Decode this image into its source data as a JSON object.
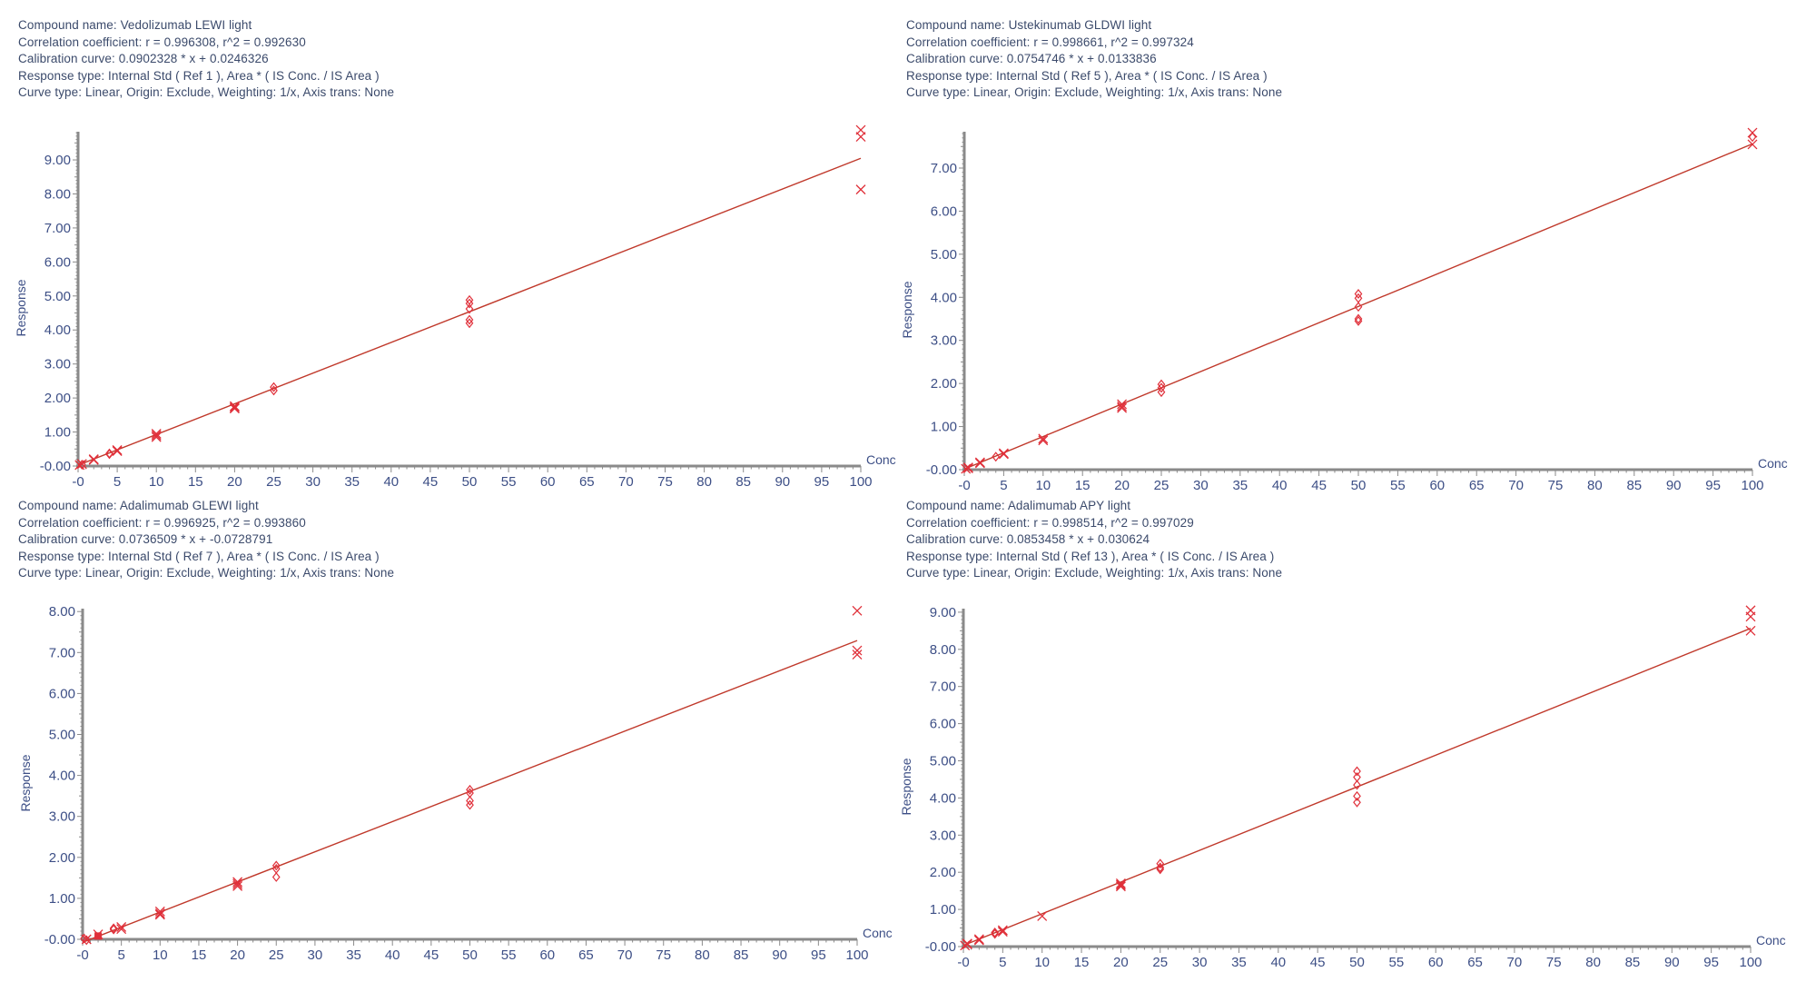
{
  "colors": {
    "header_text": "#3b4a6b",
    "axis": "#8a8a8a",
    "tick_label": "#3d4f86",
    "fit_line": "#c0392b",
    "marker": "#e0303a"
  },
  "panels": [
    {
      "header": {
        "compound": "Compound name: Vedolizumab LEWI light",
        "correlation": "Correlation coefficient: r = 0.996308, r^2 = 0.992630",
        "calibration": "Calibration curve: 0.0902328 * x + 0.0246326",
        "response_type": "Response type: Internal Std ( Ref 1 ), Area * ( IS Conc. / IS Area )",
        "curve_type": "Curve type: Linear, Origin: Exclude, Weighting: 1/x, Axis trans: None"
      },
      "ylabel": "Response",
      "xlabel": "Conc"
    },
    {
      "header": {
        "compound": "Compound name: Ustekinumab GLDWI light",
        "correlation": "Correlation coefficient: r = 0.998661, r^2 = 0.997324",
        "calibration": "Calibration curve: 0.0754746 * x + 0.0133836",
        "response_type": "Response type: Internal Std ( Ref 5 ), Area * ( IS Conc. / IS Area )",
        "curve_type": "Curve type: Linear, Origin: Exclude, Weighting: 1/x, Axis trans: None"
      },
      "ylabel": "Response",
      "xlabel": "Conc"
    },
    {
      "header": {
        "compound": "Compound name: Adalimumab GLEWI light",
        "correlation": "Correlation coefficient: r = 0.996925, r^2 = 0.993860",
        "calibration": "Calibration curve: 0.0736509 * x + -0.0728791",
        "response_type": "Response type: Internal Std ( Ref 7 ), Area * ( IS Conc. / IS Area )",
        "curve_type": "Curve type: Linear, Origin: Exclude, Weighting: 1/x, Axis trans: None"
      },
      "ylabel": "Response",
      "xlabel": "Conc"
    },
    {
      "header": {
        "compound": "Compound name: Adalimumab APY light",
        "correlation": "Correlation coefficient: r = 0.998514, r^2 = 0.997029",
        "calibration": "Calibration curve: 0.0853458 * x + 0.030624",
        "response_type": "Response type: Internal Std ( Ref 13 ), Area * ( IS Conc. / IS Area )",
        "curve_type": "Curve type: Linear, Origin: Exclude, Weighting: 1/x, Axis trans: None"
      },
      "ylabel": "Response",
      "xlabel": "Conc"
    }
  ],
  "chart_data": [
    {
      "type": "scatter",
      "title": "Vedolizumab LEWI light",
      "xlabel": "Conc",
      "ylabel": "Response",
      "xlim": [
        0,
        100
      ],
      "ylim": [
        0,
        9.8
      ],
      "x_ticks": [
        "-0",
        "5",
        "10",
        "15",
        "20",
        "25",
        "30",
        "35",
        "40",
        "45",
        "50",
        "55",
        "60",
        "65",
        "70",
        "75",
        "80",
        "85",
        "90",
        "95",
        "100"
      ],
      "y_ticks": [
        "-0.00",
        "1.00",
        "2.00",
        "3.00",
        "4.00",
        "5.00",
        "6.00",
        "7.00",
        "8.00",
        "9.00"
      ],
      "fit": {
        "slope": 0.0902328,
        "intercept": 0.0246326
      },
      "points": [
        {
          "x": 0.2,
          "y": 0.03,
          "m": "x"
        },
        {
          "x": 0.5,
          "y": 0.06,
          "m": "x"
        },
        {
          "x": 0.5,
          "y": 0.04,
          "m": "d"
        },
        {
          "x": 2,
          "y": 0.2,
          "m": "x"
        },
        {
          "x": 2,
          "y": 0.18,
          "m": "x"
        },
        {
          "x": 4,
          "y": 0.37,
          "m": "d"
        },
        {
          "x": 4,
          "y": 0.35,
          "m": "d"
        },
        {
          "x": 5,
          "y": 0.47,
          "m": "x"
        },
        {
          "x": 5,
          "y": 0.44,
          "m": "x"
        },
        {
          "x": 10,
          "y": 0.95,
          "m": "x"
        },
        {
          "x": 10,
          "y": 0.9,
          "m": "x"
        },
        {
          "x": 10,
          "y": 0.85,
          "m": "x"
        },
        {
          "x": 20,
          "y": 1.76,
          "m": "x"
        },
        {
          "x": 20,
          "y": 1.72,
          "m": "x"
        },
        {
          "x": 20,
          "y": 1.69,
          "m": "x"
        },
        {
          "x": 25,
          "y": 2.32,
          "m": "d"
        },
        {
          "x": 25,
          "y": 2.22,
          "m": "d"
        },
        {
          "x": 50,
          "y": 4.88,
          "m": "d"
        },
        {
          "x": 50,
          "y": 4.78,
          "m": "d"
        },
        {
          "x": 50,
          "y": 4.62,
          "m": "d"
        },
        {
          "x": 50,
          "y": 4.3,
          "m": "d"
        },
        {
          "x": 50,
          "y": 4.2,
          "m": "d"
        },
        {
          "x": 100,
          "y": 9.88,
          "m": "x"
        },
        {
          "x": 100,
          "y": 9.68,
          "m": "x"
        },
        {
          "x": 100,
          "y": 8.13,
          "m": "x"
        }
      ]
    },
    {
      "type": "scatter",
      "title": "Ustekinumab GLDWI light",
      "xlabel": "Conc",
      "ylabel": "Response",
      "xlim": [
        0,
        100
      ],
      "ylim": [
        0,
        7.8
      ],
      "x_ticks": [
        "-0",
        "5",
        "10",
        "15",
        "20",
        "25",
        "30",
        "35",
        "40",
        "45",
        "50",
        "55",
        "60",
        "65",
        "70",
        "75",
        "80",
        "85",
        "90",
        "95",
        "100"
      ],
      "y_ticks": [
        "-0.00",
        "1.00",
        "2.00",
        "3.00",
        "4.00",
        "5.00",
        "6.00",
        "7.00"
      ],
      "fit": {
        "slope": 0.0754746,
        "intercept": 0.0133836
      },
      "points": [
        {
          "x": 0.2,
          "y": 0.02,
          "m": "x"
        },
        {
          "x": 0.5,
          "y": 0.05,
          "m": "x"
        },
        {
          "x": 0.5,
          "y": 0.03,
          "m": "x"
        },
        {
          "x": 2,
          "y": 0.17,
          "m": "x"
        },
        {
          "x": 2,
          "y": 0.15,
          "m": "x"
        },
        {
          "x": 4,
          "y": 0.3,
          "m": "d"
        },
        {
          "x": 5,
          "y": 0.38,
          "m": "x"
        },
        {
          "x": 5,
          "y": 0.36,
          "m": "x"
        },
        {
          "x": 10,
          "y": 0.72,
          "m": "x"
        },
        {
          "x": 10,
          "y": 0.68,
          "m": "x"
        },
        {
          "x": 20,
          "y": 1.52,
          "m": "x"
        },
        {
          "x": 20,
          "y": 1.47,
          "m": "x"
        },
        {
          "x": 20,
          "y": 1.43,
          "m": "x"
        },
        {
          "x": 25,
          "y": 1.98,
          "m": "d"
        },
        {
          "x": 25,
          "y": 1.9,
          "m": "d"
        },
        {
          "x": 25,
          "y": 1.8,
          "m": "d"
        },
        {
          "x": 50,
          "y": 4.08,
          "m": "d"
        },
        {
          "x": 50,
          "y": 3.98,
          "m": "d"
        },
        {
          "x": 50,
          "y": 3.78,
          "m": "d"
        },
        {
          "x": 50,
          "y": 3.5,
          "m": "d"
        },
        {
          "x": 50,
          "y": 3.45,
          "m": "d"
        },
        {
          "x": 100,
          "y": 7.82,
          "m": "x"
        },
        {
          "x": 100,
          "y": 7.72,
          "m": "d"
        },
        {
          "x": 100,
          "y": 7.55,
          "m": "x"
        }
      ]
    },
    {
      "type": "scatter",
      "title": "Adalimumab GLEWI light",
      "xlabel": "Conc",
      "ylabel": "Response",
      "xlim": [
        0,
        100
      ],
      "ylim": [
        0,
        8.0
      ],
      "x_ticks": [
        "-0",
        "5",
        "10",
        "15",
        "20",
        "25",
        "30",
        "35",
        "40",
        "45",
        "50",
        "55",
        "60",
        "65",
        "70",
        "75",
        "80",
        "85",
        "90",
        "95",
        "100"
      ],
      "y_ticks": [
        "-0.00",
        "1.00",
        "2.00",
        "3.00",
        "4.00",
        "5.00",
        "6.00",
        "7.00",
        "8.00"
      ],
      "fit": {
        "slope": 0.0736509,
        "intercept": -0.0728791
      },
      "points": [
        {
          "x": 0.2,
          "y": 0.02,
          "m": "d"
        },
        {
          "x": 0.5,
          "y": -0.02,
          "m": "d"
        },
        {
          "x": 0.5,
          "y": 0.0,
          "m": "x"
        },
        {
          "x": 2,
          "y": 0.12,
          "m": "x"
        },
        {
          "x": 2,
          "y": 0.08,
          "m": "s"
        },
        {
          "x": 4,
          "y": 0.27,
          "m": "d"
        },
        {
          "x": 4,
          "y": 0.24,
          "m": "d"
        },
        {
          "x": 5,
          "y": 0.3,
          "m": "x"
        },
        {
          "x": 5,
          "y": 0.25,
          "m": "x"
        },
        {
          "x": 10,
          "y": 0.68,
          "m": "x"
        },
        {
          "x": 10,
          "y": 0.63,
          "m": "x"
        },
        {
          "x": 10,
          "y": 0.6,
          "m": "x"
        },
        {
          "x": 20,
          "y": 1.4,
          "m": "x"
        },
        {
          "x": 20,
          "y": 1.35,
          "m": "x"
        },
        {
          "x": 20,
          "y": 1.3,
          "m": "x"
        },
        {
          "x": 25,
          "y": 1.8,
          "m": "d"
        },
        {
          "x": 25,
          "y": 1.72,
          "m": "d"
        },
        {
          "x": 25,
          "y": 1.52,
          "m": "d"
        },
        {
          "x": 50,
          "y": 3.65,
          "m": "d"
        },
        {
          "x": 50,
          "y": 3.57,
          "m": "d"
        },
        {
          "x": 50,
          "y": 3.38,
          "m": "d"
        },
        {
          "x": 50,
          "y": 3.28,
          "m": "d"
        },
        {
          "x": 100,
          "y": 8.02,
          "m": "x"
        },
        {
          "x": 100,
          "y": 7.05,
          "m": "x"
        },
        {
          "x": 100,
          "y": 6.95,
          "m": "x"
        }
      ]
    },
    {
      "type": "scatter",
      "title": "Adalimumab APY light",
      "xlabel": "Conc",
      "ylabel": "Response",
      "xlim": [
        0,
        100
      ],
      "ylim": [
        0,
        9.0
      ],
      "x_ticks": [
        "-0",
        "5",
        "10",
        "15",
        "20",
        "25",
        "30",
        "35",
        "40",
        "45",
        "50",
        "55",
        "60",
        "65",
        "70",
        "75",
        "80",
        "85",
        "90",
        "95",
        "100"
      ],
      "y_ticks": [
        "-0.00",
        "1.00",
        "2.00",
        "3.00",
        "4.00",
        "5.00",
        "6.00",
        "7.00",
        "8.00",
        "9.00"
      ],
      "fit": {
        "slope": 0.0853458,
        "intercept": 0.030624
      },
      "points": [
        {
          "x": 0.2,
          "y": 0.03,
          "m": "x"
        },
        {
          "x": 0.5,
          "y": 0.06,
          "m": "x"
        },
        {
          "x": 0.5,
          "y": 0.08,
          "m": "x"
        },
        {
          "x": 2,
          "y": 0.2,
          "m": "x"
        },
        {
          "x": 2,
          "y": 0.17,
          "m": "x"
        },
        {
          "x": 4,
          "y": 0.38,
          "m": "d"
        },
        {
          "x": 4,
          "y": 0.34,
          "m": "d"
        },
        {
          "x": 5,
          "y": 0.44,
          "m": "x"
        },
        {
          "x": 5,
          "y": 0.4,
          "m": "x"
        },
        {
          "x": 10,
          "y": 0.82,
          "m": "x"
        },
        {
          "x": 20,
          "y": 1.7,
          "m": "x"
        },
        {
          "x": 20,
          "y": 1.66,
          "m": "x"
        },
        {
          "x": 20,
          "y": 1.62,
          "m": "x"
        },
        {
          "x": 25,
          "y": 2.23,
          "m": "d"
        },
        {
          "x": 25,
          "y": 2.13,
          "m": "d"
        },
        {
          "x": 25,
          "y": 2.08,
          "m": "d"
        },
        {
          "x": 50,
          "y": 4.72,
          "m": "d"
        },
        {
          "x": 50,
          "y": 4.56,
          "m": "d"
        },
        {
          "x": 50,
          "y": 4.35,
          "m": "d"
        },
        {
          "x": 50,
          "y": 4.05,
          "m": "d"
        },
        {
          "x": 50,
          "y": 3.88,
          "m": "d"
        },
        {
          "x": 100,
          "y": 9.05,
          "m": "x"
        },
        {
          "x": 100,
          "y": 8.88,
          "m": "x"
        },
        {
          "x": 100,
          "y": 8.5,
          "m": "x"
        }
      ]
    }
  ]
}
